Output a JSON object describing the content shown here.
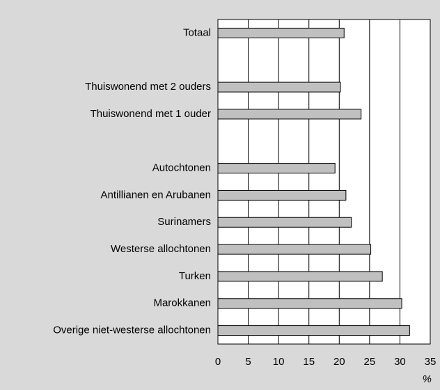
{
  "chart_data": {
    "type": "barh",
    "categories": [
      "Totaal",
      null,
      "Thuiswonend met 2 ouders",
      "Thuiswonend met 1 ouder",
      null,
      "Autochtonen",
      "Antillianen en Arubanen",
      "Surinamers",
      "Westerse allochtonen",
      "Turken",
      "Marokkanen",
      "Overige niet-westerse allochtonen"
    ],
    "values": [
      20.8,
      null,
      20.2,
      23.6,
      null,
      19.3,
      21.1,
      22.0,
      25.2,
      27.1,
      30.3,
      31.6
    ],
    "color": "#c0c0c0",
    "xlim": [
      0,
      35
    ],
    "xticks": [
      0,
      5,
      10,
      15,
      20,
      25,
      30,
      35
    ],
    "x_label": "%",
    "grid": true
  }
}
